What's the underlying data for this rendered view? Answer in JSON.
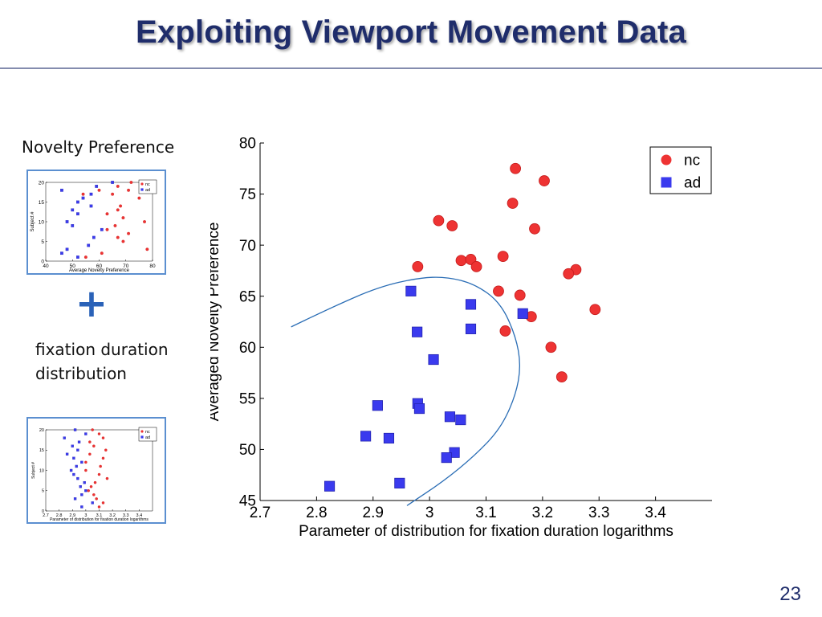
{
  "slide": {
    "title": "Exploiting Viewport Movement Data",
    "side_label_1": "Novelty Preference",
    "plus_symbol": "+",
    "side_label_2_line1": "fixation duration",
    "side_label_2_line2": "distribution",
    "page_number": "23"
  },
  "colors": {
    "title": "#1f2d6b",
    "nc": "#ee3333",
    "ad": "#3a3aee",
    "curve": "#2a6db5",
    "plus": "#2a62b8",
    "thumb_border": "#5b8fd0"
  },
  "chart_data": [
    {
      "type": "scatter",
      "title": "",
      "xlabel": "Parameter of distribution for fixation duration logarithms",
      "ylabel": "Averaged Novelty Preference",
      "xlim": [
        2.7,
        3.5
      ],
      "ylim": [
        45,
        80
      ],
      "xticks": [
        "2.7",
        "2.8",
        "2.9",
        "3",
        "3.1",
        "3.2",
        "3.3",
        "3.4"
      ],
      "yticks": [
        "45",
        "50",
        "55",
        "60",
        "65",
        "70",
        "75",
        "80"
      ],
      "grid": false,
      "legend": {
        "position": "top-right",
        "entries": [
          "nc",
          "ad"
        ]
      },
      "series": [
        {
          "name": "nc",
          "marker": "circle",
          "points": [
            [
              3.152,
              77.5
            ],
            [
              3.203,
              76.3
            ],
            [
              3.147,
              74.1
            ],
            [
              3.016,
              72.4
            ],
            [
              3.04,
              71.9
            ],
            [
              3.186,
              71.6
            ],
            [
              3.13,
              68.9
            ],
            [
              3.056,
              68.5
            ],
            [
              3.073,
              68.6
            ],
            [
              3.083,
              67.9
            ],
            [
              2.979,
              67.9
            ],
            [
              3.259,
              67.6
            ],
            [
              3.246,
              67.2
            ],
            [
              3.122,
              65.5
            ],
            [
              3.16,
              65.1
            ],
            [
              3.293,
              63.7
            ],
            [
              3.18,
              63.0
            ],
            [
              3.134,
              61.6
            ],
            [
              3.215,
              60.0
            ],
            [
              3.234,
              57.1
            ]
          ]
        },
        {
          "name": "ad",
          "marker": "square",
          "points": [
            [
              2.967,
              65.5
            ],
            [
              3.073,
              64.2
            ],
            [
              3.165,
              63.3
            ],
            [
              2.978,
              61.5
            ],
            [
              3.073,
              61.8
            ],
            [
              3.007,
              58.8
            ],
            [
              2.908,
              54.3
            ],
            [
              2.979,
              54.5
            ],
            [
              2.982,
              54.0
            ],
            [
              3.036,
              53.2
            ],
            [
              3.055,
              52.9
            ],
            [
              2.887,
              51.3
            ],
            [
              2.928,
              51.1
            ],
            [
              3.044,
              49.7
            ],
            [
              3.03,
              49.2
            ],
            [
              2.947,
              46.7
            ],
            [
              2.823,
              46.4
            ]
          ]
        }
      ],
      "decision_curve": [
        [
          2.755,
          62.0
        ],
        [
          2.83,
          64.0
        ],
        [
          2.91,
          65.9
        ],
        [
          2.98,
          66.8
        ],
        [
          3.03,
          66.9
        ],
        [
          3.08,
          66.2
        ],
        [
          3.125,
          64.4
        ],
        [
          3.152,
          61.2
        ],
        [
          3.162,
          58.2
        ],
        [
          3.152,
          55.2
        ],
        [
          3.125,
          52.0
        ],
        [
          3.08,
          49.4
        ],
        [
          3.025,
          46.9
        ],
        [
          2.96,
          44.5
        ]
      ]
    },
    {
      "type": "scatter",
      "xlabel": "Average Novelty Preference",
      "ylabel": "Subject #",
      "xlim": [
        40,
        80
      ],
      "ylim": [
        0,
        20
      ],
      "xticks": [
        "40",
        "50",
        "60",
        "70",
        "80"
      ],
      "yticks": [
        "0",
        "5",
        "10",
        "15",
        "20"
      ],
      "legend": {
        "position": "top-right",
        "entries": [
          "nc",
          "ad"
        ]
      },
      "series": [
        {
          "name": "nc",
          "marker": "circle",
          "points": [
            [
              72,
              20
            ],
            [
              67,
              19
            ],
            [
              77,
              19
            ],
            [
              60,
              18
            ],
            [
              71,
              18
            ],
            [
              54,
              17
            ],
            [
              65,
              17
            ],
            [
              75,
              16
            ],
            [
              68,
              14
            ],
            [
              67,
              13
            ],
            [
              63,
              12
            ],
            [
              69,
              11
            ],
            [
              77,
              10
            ],
            [
              66,
              9
            ],
            [
              63,
              8
            ],
            [
              71,
              7
            ],
            [
              67,
              6
            ],
            [
              69,
              5
            ],
            [
              78,
              3
            ],
            [
              61,
              2
            ],
            [
              55,
              1
            ]
          ]
        },
        {
          "name": "ad",
          "marker": "square",
          "points": [
            [
              65,
              20
            ],
            [
              59,
              19
            ],
            [
              46,
              18
            ],
            [
              57,
              17
            ],
            [
              54,
              16
            ],
            [
              52,
              15
            ],
            [
              57,
              14
            ],
            [
              50,
              13
            ],
            [
              52,
              12
            ],
            [
              48,
              10
            ],
            [
              50,
              9
            ],
            [
              61,
              8
            ],
            [
              58,
              6
            ],
            [
              56,
              4
            ],
            [
              48,
              3
            ],
            [
              46,
              2
            ],
            [
              52,
              1
            ]
          ]
        }
      ]
    },
    {
      "type": "scatter",
      "xlabel": "Parameter of distribution for fixation duration logarithms",
      "ylabel": "Subject #",
      "xlim": [
        2.7,
        3.5
      ],
      "ylim": [
        0,
        20
      ],
      "xticks": [
        "2.7",
        "2.8",
        "2.9",
        "3",
        "3.1",
        "3.2",
        "3.3",
        "3.4"
      ],
      "yticks": [
        "0",
        "5",
        "10",
        "15",
        "20"
      ],
      "legend": {
        "position": "top-right",
        "entries": [
          "nc",
          "ad"
        ]
      },
      "series": [
        {
          "name": "nc",
          "marker": "circle",
          "points": [
            [
              3.05,
              20
            ],
            [
              3.1,
              19
            ],
            [
              3.13,
              18
            ],
            [
              3.03,
              17
            ],
            [
              3.06,
              16
            ],
            [
              3.15,
              15
            ],
            [
              3.03,
              14
            ],
            [
              3.13,
              13
            ],
            [
              3.0,
              12
            ],
            [
              3.11,
              11
            ],
            [
              3.0,
              10
            ],
            [
              3.1,
              9
            ],
            [
              3.16,
              8
            ],
            [
              3.07,
              7
            ],
            [
              3.04,
              6
            ],
            [
              3.02,
              5
            ],
            [
              3.06,
              4
            ],
            [
              3.08,
              3
            ],
            [
              3.13,
              2
            ],
            [
              3.1,
              1
            ]
          ]
        },
        {
          "name": "ad",
          "marker": "square",
          "points": [
            [
              2.92,
              20
            ],
            [
              3.0,
              19
            ],
            [
              2.84,
              18
            ],
            [
              2.95,
              17
            ],
            [
              2.9,
              16
            ],
            [
              2.94,
              15
            ],
            [
              2.86,
              14
            ],
            [
              2.91,
              13
            ],
            [
              2.97,
              12
            ],
            [
              2.93,
              11
            ],
            [
              2.89,
              10
            ],
            [
              2.91,
              9
            ],
            [
              2.94,
              8
            ],
            [
              2.99,
              7
            ],
            [
              2.96,
              6
            ],
            [
              3.0,
              5
            ],
            [
              2.97,
              4
            ],
            [
              2.92,
              3
            ],
            [
              3.05,
              2
            ],
            [
              2.97,
              1
            ]
          ]
        }
      ]
    }
  ]
}
